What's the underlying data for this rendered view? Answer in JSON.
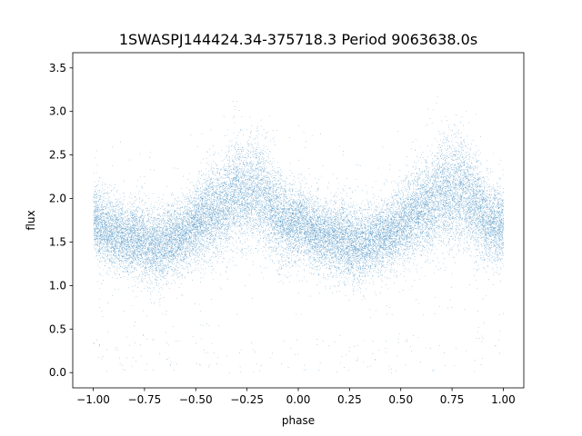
{
  "chart_data": {
    "type": "scatter",
    "title": "1SWASPJ144424.34-375718.3 Period 9063638.0s",
    "xlabel": "phase",
    "ylabel": "flux",
    "xlim": [
      -1.1,
      1.1
    ],
    "ylim": [
      -0.175,
      3.675
    ],
    "xticks": [
      -1.0,
      -0.75,
      -0.5,
      -0.25,
      0.0,
      0.25,
      0.5,
      0.75,
      1.0
    ],
    "xtick_labels": [
      "−1.00",
      "−0.75",
      "−0.50",
      "−0.25",
      "0.00",
      "0.25",
      "0.50",
      "0.75",
      "1.00"
    ],
    "yticks": [
      0.0,
      0.5,
      1.0,
      1.5,
      2.0,
      2.5,
      3.0,
      3.5
    ],
    "ytick_labels": [
      "0.0",
      "0.5",
      "1.0",
      "1.5",
      "2.0",
      "2.5",
      "3.0",
      "3.5"
    ],
    "grid": false,
    "marker_color": "#1f77b4",
    "series": [
      {
        "phase": [
          0.0,
          0.05,
          0.1,
          0.15,
          0.2,
          0.25,
          0.3,
          0.35,
          0.4,
          0.45,
          0.5,
          0.55,
          0.6,
          0.65,
          0.7,
          0.75,
          0.8,
          0.85,
          0.9,
          0.95,
          1.0
        ],
        "median_flux": [
          1.75,
          1.65,
          1.6,
          1.55,
          1.55,
          1.5,
          1.45,
          1.5,
          1.55,
          1.6,
          1.7,
          1.8,
          1.85,
          1.95,
          2.1,
          2.05,
          2.1,
          1.95,
          1.8,
          1.7,
          1.7
        ],
        "spread": [
          0.2,
          0.2,
          0.2,
          0.2,
          0.22,
          0.22,
          0.22,
          0.2,
          0.2,
          0.2,
          0.22,
          0.25,
          0.25,
          0.28,
          0.3,
          0.3,
          0.3,
          0.28,
          0.25,
          0.22,
          0.2
        ],
        "n_points": 24000
      }
    ]
  }
}
